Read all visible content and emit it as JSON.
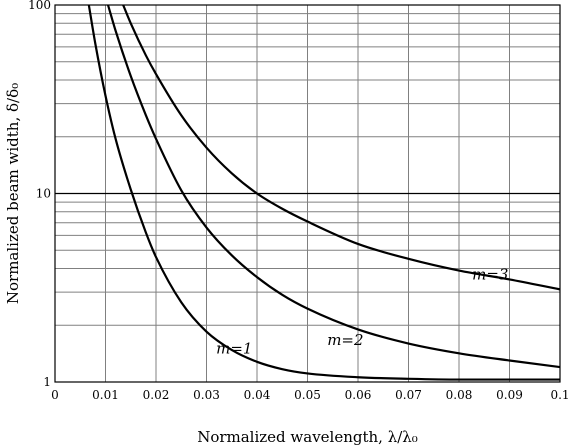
{
  "chart_data": {
    "type": "line",
    "xlabel": "Normalized wavelength, λ/λ₀",
    "ylabel": "Normalized beam width, δ/δ₀",
    "xlim": [
      0,
      0.1
    ],
    "ylim": [
      1,
      100
    ],
    "yscale": "log",
    "grid": true,
    "x_ticks": [
      "0",
      "0.01",
      "0.02",
      "0.03",
      "0.04",
      "0.05",
      "0.06",
      "0.07",
      "0.08",
      "0.09",
      "0.1"
    ],
    "y_ticks": [
      "1",
      "10",
      "100"
    ],
    "series": [
      {
        "name": "m=1",
        "x": [
          0.0067,
          0.008,
          0.01,
          0.012,
          0.015,
          0.018,
          0.02,
          0.025,
          0.03,
          0.035,
          0.04,
          0.045,
          0.05,
          0.06,
          0.07,
          0.08,
          0.09,
          0.1
        ],
        "y": [
          100,
          62,
          33,
          19.5,
          10.5,
          6.2,
          4.6,
          2.65,
          1.85,
          1.48,
          1.28,
          1.17,
          1.11,
          1.06,
          1.04,
          1.03,
          1.03,
          1.03
        ]
      },
      {
        "name": "m=2",
        "x": [
          0.0105,
          0.012,
          0.015,
          0.018,
          0.02,
          0.025,
          0.03,
          0.035,
          0.04,
          0.045,
          0.05,
          0.06,
          0.07,
          0.08,
          0.09,
          0.1
        ],
        "y": [
          100,
          73,
          42,
          26,
          19.5,
          10.4,
          6.6,
          4.7,
          3.6,
          2.9,
          2.45,
          1.9,
          1.6,
          1.42,
          1.3,
          1.2
        ]
      },
      {
        "name": "m=3",
        "x": [
          0.0135,
          0.015,
          0.018,
          0.02,
          0.025,
          0.03,
          0.035,
          0.04,
          0.045,
          0.05,
          0.06,
          0.07,
          0.08,
          0.09,
          0.1
        ],
        "y": [
          100,
          80,
          54,
          43,
          26,
          17.5,
          12.8,
          10,
          8.3,
          7.1,
          5.4,
          4.5,
          3.9,
          3.5,
          3.1
        ]
      }
    ],
    "annotations": [
      {
        "text": "m=1",
        "series": "m=1"
      },
      {
        "text": "m=2",
        "series": "m=2"
      },
      {
        "text": "m=3",
        "series": "m=3"
      }
    ]
  }
}
